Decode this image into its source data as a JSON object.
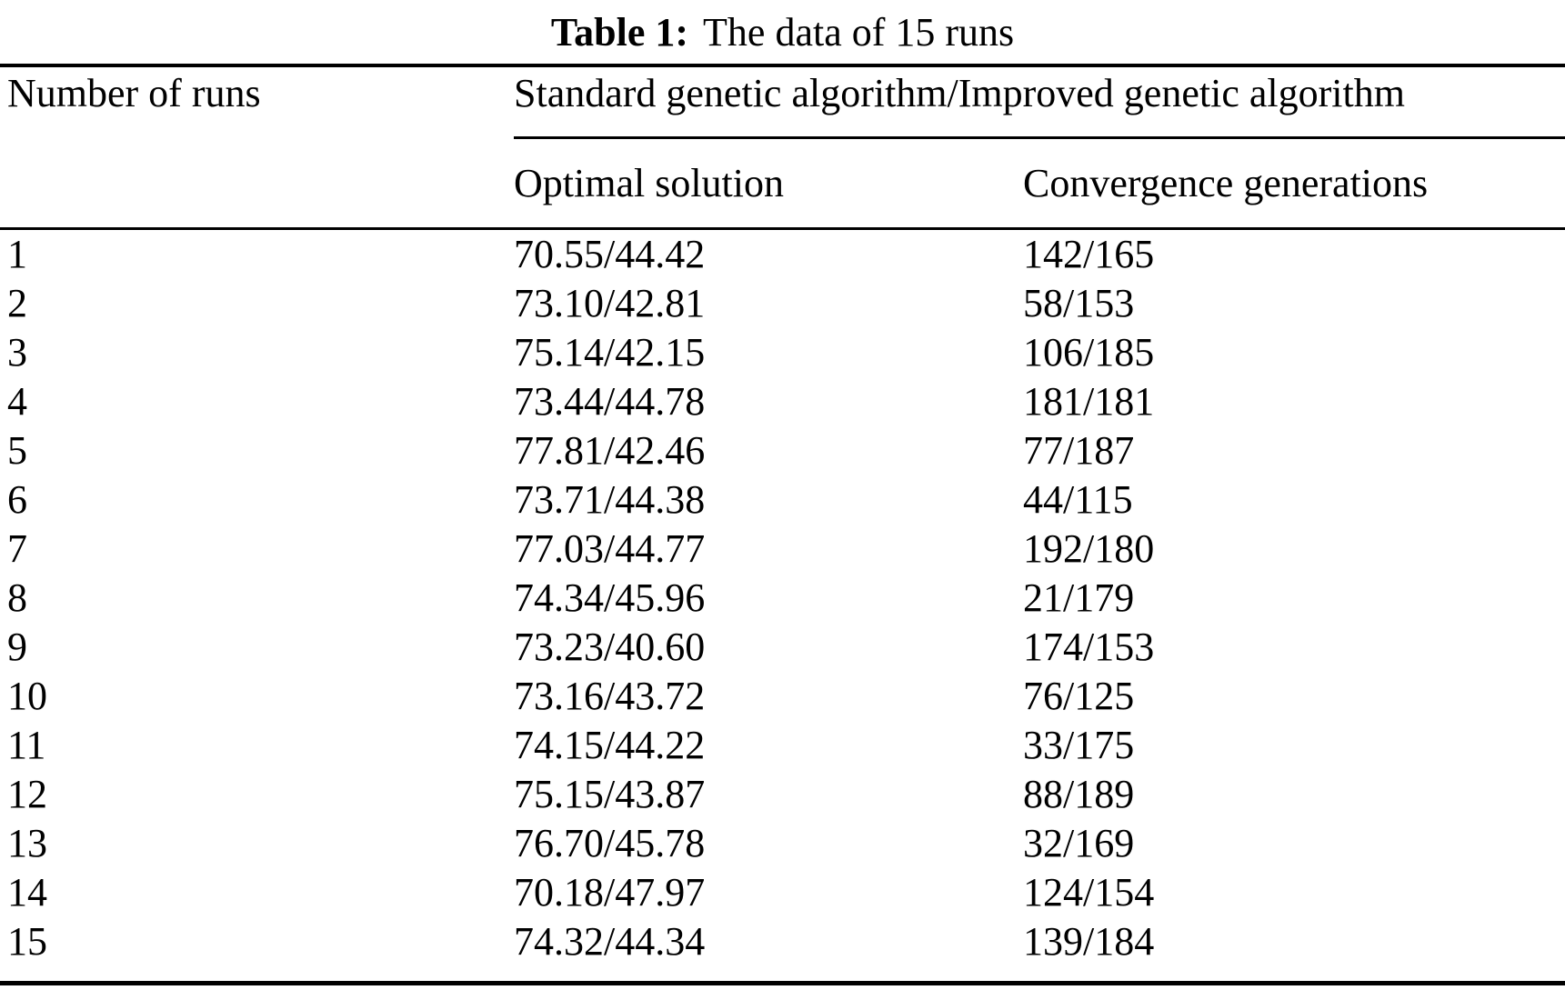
{
  "caption": {
    "label": "Table 1:",
    "text": "The data of 15 runs"
  },
  "table": {
    "col1_header": "Number of runs",
    "group_header": "Standard genetic algorithm/Improved genetic algorithm",
    "sub_headers": {
      "optimal": "Optimal solution",
      "convergence": "Convergence generations"
    },
    "rows": [
      {
        "run": "1",
        "optimal": "70.55/44.42",
        "convergence": "142/165"
      },
      {
        "run": "2",
        "optimal": "73.10/42.81",
        "convergence": "58/153"
      },
      {
        "run": "3",
        "optimal": "75.14/42.15",
        "convergence": "106/185"
      },
      {
        "run": "4",
        "optimal": "73.44/44.78",
        "convergence": "181/181"
      },
      {
        "run": "5",
        "optimal": "77.81/42.46",
        "convergence": "77/187"
      },
      {
        "run": "6",
        "optimal": "73.71/44.38",
        "convergence": "44/115"
      },
      {
        "run": "7",
        "optimal": "77.03/44.77",
        "convergence": "192/180"
      },
      {
        "run": "8",
        "optimal": "74.34/45.96",
        "convergence": "21/179"
      },
      {
        "run": "9",
        "optimal": "73.23/40.60",
        "convergence": "174/153"
      },
      {
        "run": "10",
        "optimal": "73.16/43.72",
        "convergence": "76/125"
      },
      {
        "run": "11",
        "optimal": "74.15/44.22",
        "convergence": "33/175"
      },
      {
        "run": "12",
        "optimal": "75.15/43.87",
        "convergence": "88/189"
      },
      {
        "run": "13",
        "optimal": "76.70/45.78",
        "convergence": "32/169"
      },
      {
        "run": "14",
        "optimal": "70.18/47.97",
        "convergence": "124/154"
      },
      {
        "run": "15",
        "optimal": "74.32/44.34",
        "convergence": "139/184"
      }
    ]
  },
  "colors": {
    "text": "#000000",
    "rule": "#000000",
    "background": "#ffffff"
  }
}
